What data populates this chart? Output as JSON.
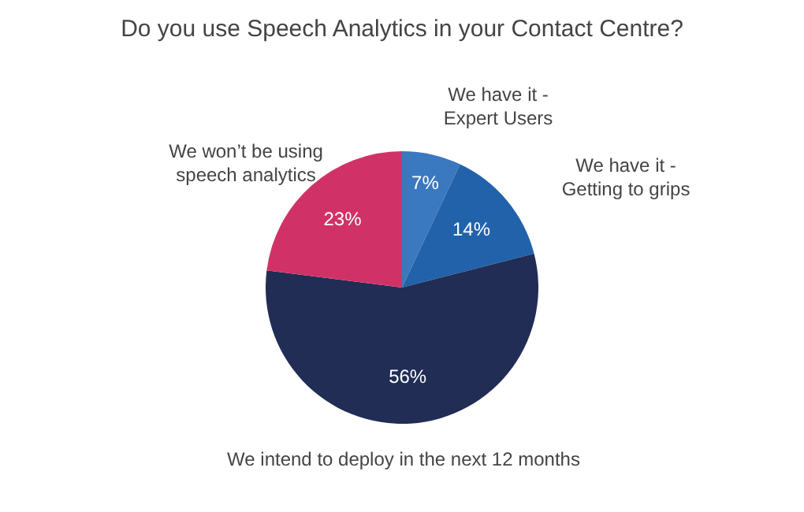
{
  "chart_data": {
    "type": "pie",
    "title": "Do you use Speech Analytics in your Contact Centre?",
    "categories": [
      "We have it - Expert Users",
      "We have it - Getting to grips",
      "We intend to deploy in the next 12 months",
      "We won’t be using speech analytics"
    ],
    "values": [
      7,
      14,
      56,
      23
    ],
    "colors": [
      "#3a78bf",
      "#2262aa",
      "#212d55",
      "#d03268"
    ],
    "value_labels": [
      "7%",
      "14%",
      "56%",
      "23%"
    ],
    "legend": false
  }
}
